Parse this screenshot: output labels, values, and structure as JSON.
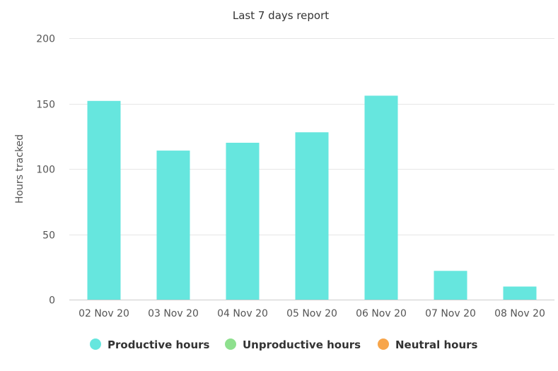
{
  "chart_data": {
    "type": "bar",
    "title": "Last 7 days report",
    "ylabel": "Hours tracked",
    "xlabel": "",
    "categories": [
      "02 Nov 20",
      "03 Nov 20",
      "04 Nov 20",
      "05 Nov 20",
      "06 Nov 20",
      "07 Nov 20",
      "08 Nov 20"
    ],
    "series": [
      {
        "name": "Productive hours",
        "values": [
          152,
          114,
          120,
          128,
          156,
          22,
          10
        ],
        "color": "#66e6de"
      },
      {
        "name": "Unproductive hours",
        "values": [
          0,
          0,
          0,
          0,
          0,
          0,
          0
        ],
        "color": "#8ee08e"
      },
      {
        "name": "Neutral hours",
        "values": [
          0,
          0,
          0,
          0,
          0,
          0,
          0
        ],
        "color": "#f7a54a"
      }
    ],
    "ylim": [
      0,
      200
    ],
    "yticks": [
      0,
      50,
      100,
      150,
      200
    ],
    "grid": true,
    "legend_position": "bottom-center"
  }
}
